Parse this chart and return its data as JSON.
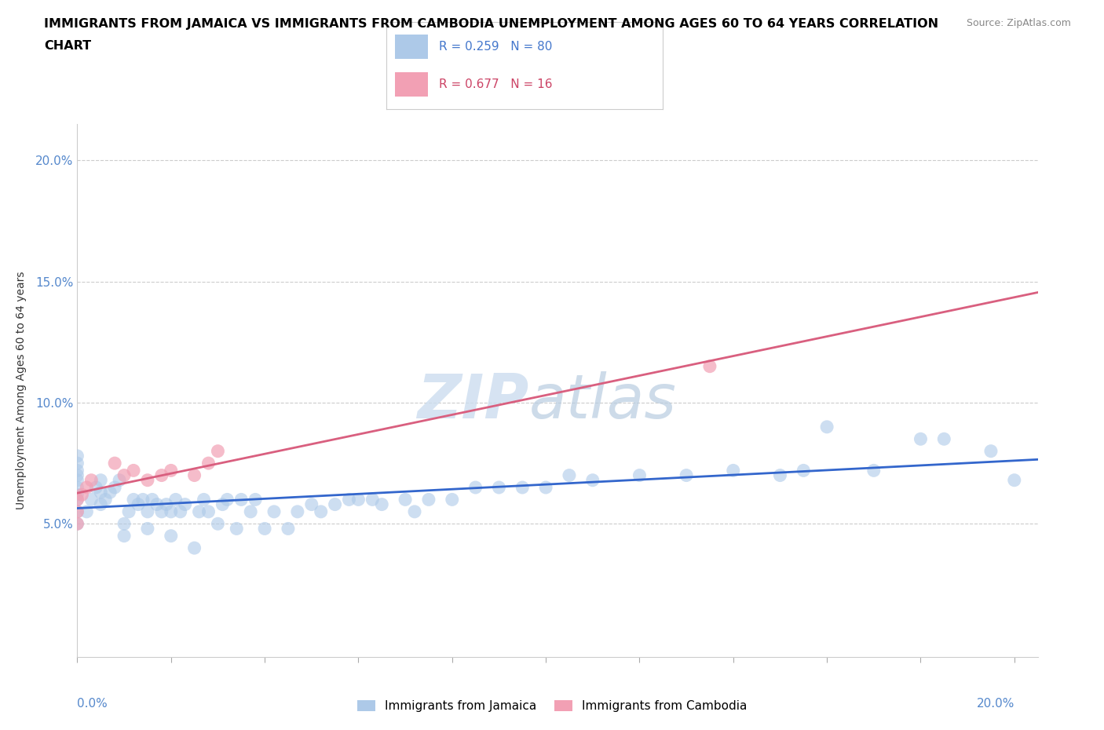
{
  "title_line1": "IMMIGRANTS FROM JAMAICA VS IMMIGRANTS FROM CAMBODIA UNEMPLOYMENT AMONG AGES 60 TO 64 YEARS CORRELATION",
  "title_line2": "CHART",
  "source": "Source: ZipAtlas.com",
  "ylabel": "Unemployment Among Ages 60 to 64 years",
  "xlim": [
    0.0,
    0.205
  ],
  "ylim": [
    -0.005,
    0.215
  ],
  "jamaica_color": "#adc9e8",
  "cambodia_color": "#f2a0b4",
  "jamaica_line_color": "#3366cc",
  "cambodia_line_color": "#d95f7f",
  "jamaica_R": 0.259,
  "jamaica_N": 80,
  "cambodia_R": 0.677,
  "cambodia_N": 16,
  "jamaica_x": [
    0.0,
    0.0,
    0.0,
    0.0,
    0.0,
    0.0,
    0.0,
    0.0,
    0.0,
    0.0,
    0.002,
    0.003,
    0.004,
    0.005,
    0.005,
    0.005,
    0.006,
    0.007,
    0.008,
    0.009,
    0.01,
    0.01,
    0.011,
    0.012,
    0.013,
    0.014,
    0.015,
    0.015,
    0.016,
    0.017,
    0.018,
    0.019,
    0.02,
    0.02,
    0.021,
    0.022,
    0.023,
    0.025,
    0.026,
    0.027,
    0.028,
    0.03,
    0.031,
    0.032,
    0.034,
    0.035,
    0.037,
    0.038,
    0.04,
    0.042,
    0.045,
    0.047,
    0.05,
    0.052,
    0.055,
    0.058,
    0.06,
    0.063,
    0.065,
    0.07,
    0.072,
    0.075,
    0.08,
    0.085,
    0.09,
    0.095,
    0.1,
    0.105,
    0.11,
    0.12,
    0.13,
    0.14,
    0.15,
    0.155,
    0.16,
    0.17,
    0.18,
    0.185,
    0.195,
    0.2
  ],
  "jamaica_y": [
    0.05,
    0.055,
    0.06,
    0.062,
    0.065,
    0.068,
    0.07,
    0.072,
    0.075,
    0.078,
    0.055,
    0.06,
    0.065,
    0.058,
    0.063,
    0.068,
    0.06,
    0.063,
    0.065,
    0.068,
    0.045,
    0.05,
    0.055,
    0.06,
    0.058,
    0.06,
    0.048,
    0.055,
    0.06,
    0.058,
    0.055,
    0.058,
    0.045,
    0.055,
    0.06,
    0.055,
    0.058,
    0.04,
    0.055,
    0.06,
    0.055,
    0.05,
    0.058,
    0.06,
    0.048,
    0.06,
    0.055,
    0.06,
    0.048,
    0.055,
    0.048,
    0.055,
    0.058,
    0.055,
    0.058,
    0.06,
    0.06,
    0.06,
    0.058,
    0.06,
    0.055,
    0.06,
    0.06,
    0.065,
    0.065,
    0.065,
    0.065,
    0.07,
    0.068,
    0.07,
    0.07,
    0.072,
    0.07,
    0.072,
    0.09,
    0.072,
    0.085,
    0.085,
    0.08,
    0.068
  ],
  "cambodia_x": [
    0.0,
    0.0,
    0.0,
    0.001,
    0.002,
    0.003,
    0.008,
    0.01,
    0.012,
    0.015,
    0.018,
    0.02,
    0.025,
    0.028,
    0.03,
    0.135
  ],
  "cambodia_y": [
    0.05,
    0.055,
    0.06,
    0.062,
    0.065,
    0.068,
    0.075,
    0.07,
    0.072,
    0.068,
    0.07,
    0.072,
    0.07,
    0.075,
    0.08,
    0.115
  ],
  "yticks": [
    0.0,
    0.05,
    0.1,
    0.15,
    0.2
  ],
  "ytick_labels": [
    "",
    "5.0%",
    "10.0%",
    "15.0%",
    "20.0%"
  ],
  "xtick_positions": [
    0.0,
    0.02,
    0.04,
    0.06,
    0.08,
    0.1,
    0.12,
    0.14,
    0.16,
    0.18,
    0.2
  ]
}
